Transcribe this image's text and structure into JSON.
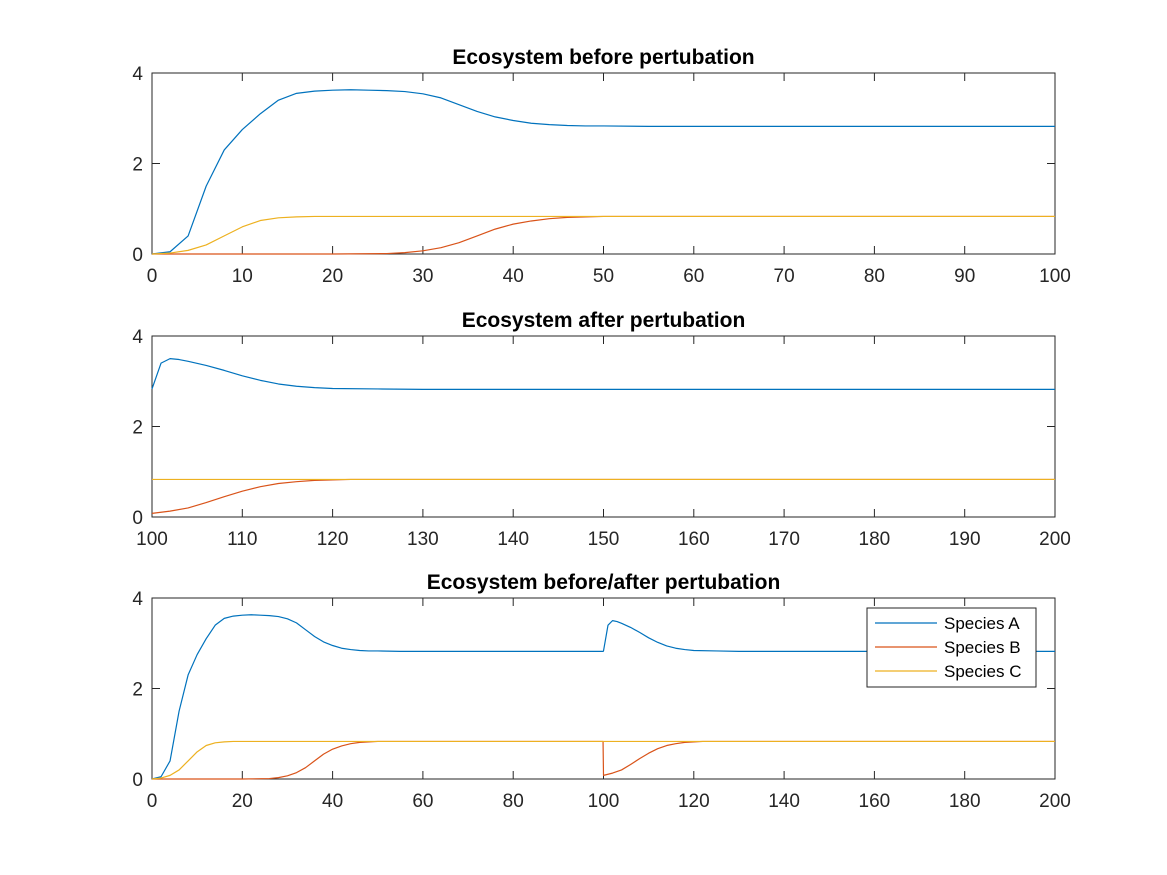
{
  "colors": {
    "species_a": "#0072BD",
    "species_b": "#D95319",
    "species_c": "#EDB120",
    "axis": "#262626"
  },
  "chart_data": [
    {
      "type": "line",
      "title": "Ecosystem before pertubation",
      "xlim": [
        0,
        100
      ],
      "ylim": [
        0,
        4
      ],
      "xticks": [
        "0",
        "10",
        "20",
        "30",
        "40",
        "50",
        "60",
        "70",
        "80",
        "90",
        "100"
      ],
      "yticks": [
        "0",
        "2",
        "4"
      ],
      "grid": false,
      "series": [
        {
          "key": "species_a",
          "x": [
            0,
            2,
            4,
            6,
            8,
            10,
            12,
            14,
            16,
            18,
            20,
            22,
            24,
            26,
            28,
            30,
            32,
            34,
            36,
            38,
            40,
            42,
            44,
            46,
            48,
            50,
            55,
            60,
            70,
            80,
            90,
            100
          ],
          "y": [
            0,
            0.05,
            0.4,
            1.5,
            2.3,
            2.75,
            3.1,
            3.4,
            3.55,
            3.6,
            3.62,
            3.63,
            3.62,
            3.61,
            3.59,
            3.54,
            3.45,
            3.3,
            3.15,
            3.03,
            2.95,
            2.89,
            2.86,
            2.84,
            2.83,
            2.83,
            2.82,
            2.82,
            2.82,
            2.82,
            2.82,
            2.82
          ]
        },
        {
          "key": "species_b",
          "x": [
            0,
            10,
            20,
            26,
            28,
            30,
            32,
            34,
            36,
            38,
            40,
            42,
            44,
            46,
            48,
            50,
            55,
            60,
            70,
            80,
            90,
            100
          ],
          "y": [
            0,
            0,
            0,
            0.01,
            0.03,
            0.07,
            0.14,
            0.25,
            0.4,
            0.55,
            0.66,
            0.73,
            0.78,
            0.81,
            0.82,
            0.83,
            0.83,
            0.83,
            0.83,
            0.83,
            0.83,
            0.83
          ]
        },
        {
          "key": "species_c",
          "x": [
            0,
            2,
            4,
            6,
            8,
            10,
            12,
            14,
            16,
            18,
            20,
            30,
            40,
            50,
            60,
            70,
            80,
            90,
            100
          ],
          "y": [
            0,
            0.02,
            0.08,
            0.2,
            0.4,
            0.6,
            0.74,
            0.8,
            0.82,
            0.83,
            0.83,
            0.83,
            0.83,
            0.83,
            0.83,
            0.83,
            0.83,
            0.83,
            0.83
          ]
        }
      ]
    },
    {
      "type": "line",
      "title": "Ecosystem after pertubation",
      "xlim": [
        100,
        200
      ],
      "ylim": [
        0,
        4
      ],
      "xticks": [
        "100",
        "110",
        "120",
        "130",
        "140",
        "150",
        "160",
        "170",
        "180",
        "190",
        "200"
      ],
      "yticks": [
        "0",
        "2",
        "4"
      ],
      "grid": false,
      "series": [
        {
          "key": "species_a",
          "x": [
            100,
            101,
            102,
            103,
            104,
            106,
            108,
            110,
            112,
            114,
            116,
            118,
            120,
            125,
            130,
            140,
            150,
            160,
            170,
            180,
            190,
            200
          ],
          "y": [
            2.83,
            3.4,
            3.5,
            3.48,
            3.44,
            3.35,
            3.24,
            3.12,
            3.02,
            2.94,
            2.89,
            2.86,
            2.84,
            2.83,
            2.82,
            2.82,
            2.82,
            2.82,
            2.82,
            2.82,
            2.82,
            2.82
          ]
        },
        {
          "key": "species_b",
          "x": [
            100,
            102,
            104,
            106,
            108,
            110,
            112,
            114,
            116,
            118,
            120,
            122,
            125,
            130,
            140,
            150,
            160,
            170,
            180,
            190,
            200
          ],
          "y": [
            0.08,
            0.13,
            0.2,
            0.32,
            0.45,
            0.57,
            0.67,
            0.74,
            0.78,
            0.81,
            0.82,
            0.83,
            0.83,
            0.83,
            0.83,
            0.83,
            0.83,
            0.83,
            0.83,
            0.83,
            0.83
          ]
        },
        {
          "key": "species_c",
          "x": [
            100,
            120,
            140,
            160,
            180,
            200
          ],
          "y": [
            0.83,
            0.83,
            0.83,
            0.83,
            0.83,
            0.83
          ]
        }
      ]
    },
    {
      "type": "line",
      "title": "Ecosystem before/after pertubation",
      "xlim": [
        0,
        200
      ],
      "ylim": [
        0,
        4
      ],
      "xticks": [
        "0",
        "20",
        "40",
        "60",
        "80",
        "100",
        "120",
        "140",
        "160",
        "180",
        "200"
      ],
      "yticks": [
        "0",
        "2",
        "4"
      ],
      "grid": false,
      "legend": {
        "location": "top-right",
        "entries": [
          "Species A",
          "Species B",
          "Species C"
        ]
      },
      "series": [
        {
          "key": "species_a",
          "x": [
            0,
            2,
            4,
            6,
            8,
            10,
            12,
            14,
            16,
            18,
            20,
            22,
            24,
            26,
            28,
            30,
            32,
            34,
            36,
            38,
            40,
            42,
            44,
            46,
            48,
            50,
            55,
            60,
            70,
            80,
            90,
            99.9,
            100,
            101,
            102,
            103,
            104,
            106,
            108,
            110,
            112,
            114,
            116,
            118,
            120,
            125,
            130,
            140,
            150,
            160,
            170,
            180,
            190,
            200
          ],
          "y": [
            0,
            0.05,
            0.4,
            1.5,
            2.3,
            2.75,
            3.1,
            3.4,
            3.55,
            3.6,
            3.62,
            3.63,
            3.62,
            3.61,
            3.59,
            3.54,
            3.45,
            3.3,
            3.15,
            3.03,
            2.95,
            2.89,
            2.86,
            2.84,
            2.83,
            2.83,
            2.82,
            2.82,
            2.82,
            2.82,
            2.82,
            2.82,
            2.83,
            3.4,
            3.5,
            3.48,
            3.44,
            3.35,
            3.24,
            3.12,
            3.02,
            2.94,
            2.89,
            2.86,
            2.84,
            2.83,
            2.82,
            2.82,
            2.82,
            2.82,
            2.82,
            2.82,
            2.82,
            2.82
          ]
        },
        {
          "key": "species_b",
          "x": [
            0,
            10,
            20,
            26,
            28,
            30,
            32,
            34,
            36,
            38,
            40,
            42,
            44,
            46,
            48,
            50,
            55,
            60,
            70,
            80,
            90,
            99.9,
            100,
            102,
            104,
            106,
            108,
            110,
            112,
            114,
            116,
            118,
            120,
            122,
            125,
            130,
            140,
            150,
            160,
            170,
            180,
            190,
            200
          ],
          "y": [
            0,
            0,
            0,
            0.01,
            0.03,
            0.07,
            0.14,
            0.25,
            0.4,
            0.55,
            0.66,
            0.73,
            0.78,
            0.81,
            0.82,
            0.83,
            0.83,
            0.83,
            0.83,
            0.83,
            0.83,
            0.83,
            0.08,
            0.13,
            0.2,
            0.32,
            0.45,
            0.57,
            0.67,
            0.74,
            0.78,
            0.81,
            0.82,
            0.83,
            0.83,
            0.83,
            0.83,
            0.83,
            0.83,
            0.83,
            0.83,
            0.83,
            0.83
          ]
        },
        {
          "key": "species_c",
          "x": [
            0,
            2,
            4,
            6,
            8,
            10,
            12,
            14,
            16,
            18,
            20,
            30,
            40,
            50,
            60,
            80,
            100,
            120,
            140,
            160,
            180,
            200
          ],
          "y": [
            0,
            0.02,
            0.08,
            0.2,
            0.4,
            0.6,
            0.74,
            0.8,
            0.82,
            0.83,
            0.83,
            0.83,
            0.83,
            0.83,
            0.83,
            0.83,
            0.83,
            0.83,
            0.83,
            0.83,
            0.83,
            0.83
          ]
        }
      ]
    }
  ]
}
